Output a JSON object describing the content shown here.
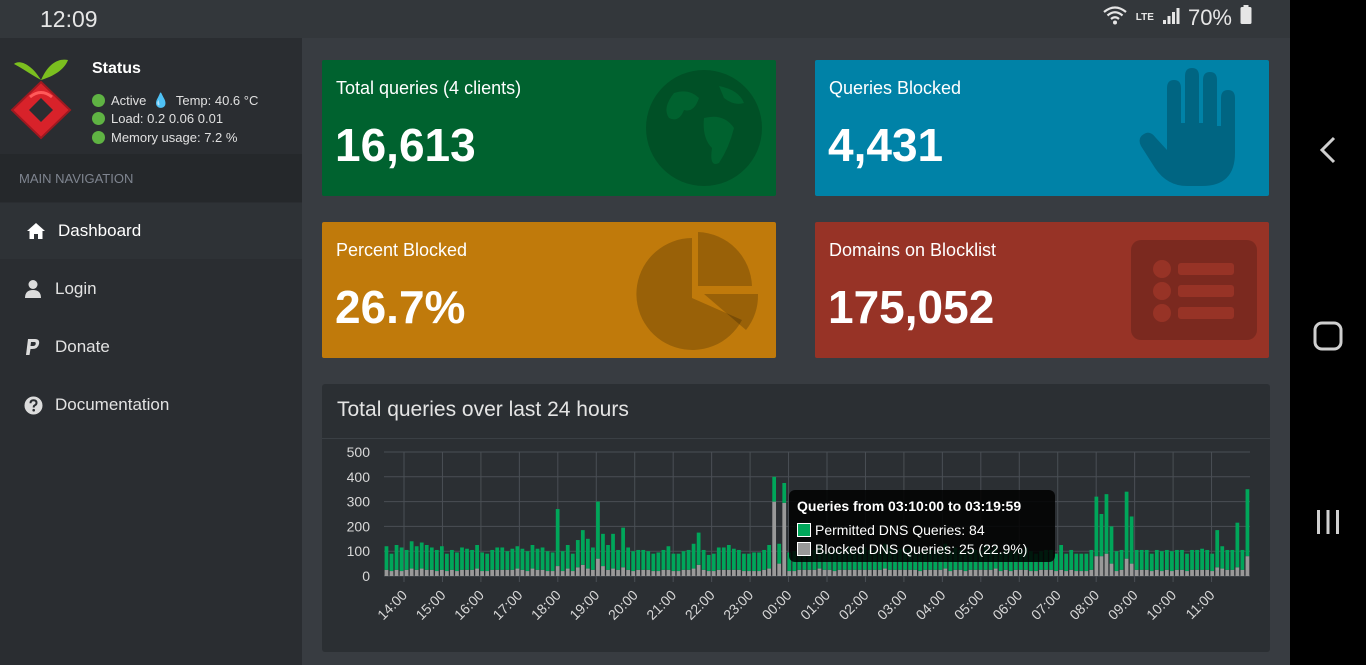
{
  "statusbar": {
    "time": "12:09",
    "network": "LTE",
    "battery": "70%"
  },
  "sidebar": {
    "status_title": "Status",
    "active_label": "Active",
    "temp_label": "Temp: 40.6 °C",
    "load_label": "Load:  0.2  0.06  0.01",
    "memory_label": "Memory usage:  7.2 %",
    "nav_header": "MAIN NAVIGATION",
    "items": [
      {
        "label": "Dashboard",
        "icon": "home-icon",
        "active": true
      },
      {
        "label": "Login",
        "icon": "user-icon",
        "active": false
      },
      {
        "label": "Donate",
        "icon": "paypal-icon",
        "active": false
      },
      {
        "label": "Documentation",
        "icon": "question-circle-icon",
        "active": false
      }
    ]
  },
  "tiles": [
    {
      "label": "Total queries (4 clients)",
      "value": "16,613",
      "color": "#00622f",
      "icon": "globe-icon"
    },
    {
      "label": "Queries Blocked",
      "value": "4,431",
      "color": "#0082a7",
      "icon": "hand-icon"
    },
    {
      "label": "Percent Blocked",
      "value": "26.7%",
      "color": "#c07a0b",
      "icon": "pie-chart-icon"
    },
    {
      "label": "Domains on Blocklist",
      "value": "175,052",
      "color": "#973326",
      "icon": "list-icon"
    }
  ],
  "chart": {
    "title": "Total queries over last 24 hours",
    "tooltip": {
      "title": "Queries from 03:10:00 to 03:19:59",
      "permitted": "Permitted DNS Queries: 84",
      "blocked": "Blocked DNS Queries: 25 (22.9%)"
    }
  },
  "chart_data": {
    "type": "bar",
    "stacked": true,
    "title": "Total queries over last 24 hours",
    "ylim": [
      0,
      500
    ],
    "yticks": [
      0,
      100,
      200,
      300,
      400,
      500
    ],
    "x_tick_labels": [
      "14:00",
      "15:00",
      "16:00",
      "17:00",
      "18:00",
      "19:00",
      "20:00",
      "21:00",
      "22:00",
      "23:00",
      "00:00",
      "01:00",
      "02:00",
      "03:00",
      "04:00",
      "05:00",
      "06:00",
      "07:00",
      "08:00",
      "09:00",
      "10:00",
      "11:00"
    ],
    "colors": {
      "permitted": "#00a65a",
      "blocked": "#999999"
    },
    "series": [
      {
        "name": "Permitted DNS Queries",
        "values": [
          95,
          70,
          100,
          95,
          80,
          110,
          95,
          105,
          100,
          90,
          85,
          95,
          70,
          80,
          75,
          90,
          85,
          80,
          95,
          75,
          70,
          80,
          90,
          90,
          75,
          85,
          90,
          85,
          80,
          95,
          85,
          90,
          80,
          75,
          230,
          80,
          95,
          70,
          110,
          140,
          120,
          90,
          230,
          130,
          100,
          140,
          80,
          160,
          90,
          80,
          80,
          80,
          75,
          70,
          75,
          80,
          95,
          70,
          70,
          75,
          80,
          100,
          130,
          80,
          65,
          70,
          90,
          90,
          100,
          85,
          80,
          70,
          70,
          75,
          75,
          80,
          95,
          100,
          80,
          80,
          75,
          80,
          70,
          70,
          80,
          80,
          90,
          75,
          75,
          85,
          80,
          80,
          95,
          80,
          80,
          90,
          80,
          80,
          75,
          100,
          90,
          80,
          85,
          84,
          85,
          80,
          75,
          80,
          80,
          80,
          80,
          100,
          80,
          90,
          80,
          80,
          80,
          80,
          75,
          100,
          80,
          90,
          75,
          80,
          80,
          80,
          80,
          90,
          80,
          70,
          75,
          80,
          80,
          70,
          100,
          70,
          80,
          70,
          70,
          70,
          80,
          240,
          170,
          240,
          150,
          80,
          80,
          270,
          190,
          80,
          80,
          80,
          70,
          80,
          80,
          80,
          80,
          80,
          80,
          70,
          80,
          80,
          85,
          80,
          70,
          150,
          90,
          80,
          80,
          180,
          80,
          270
        ]
      },
      {
        "name": "Blocked DNS Queries",
        "values": [
          25,
          20,
          25,
          20,
          25,
          30,
          25,
          30,
          25,
          25,
          20,
          25,
          20,
          25,
          20,
          25,
          25,
          25,
          30,
          20,
          20,
          25,
          25,
          25,
          25,
          25,
          30,
          25,
          20,
          30,
          25,
          25,
          20,
          20,
          40,
          20,
          30,
          20,
          35,
          45,
          30,
          25,
          70,
          40,
          25,
          30,
          25,
          35,
          25,
          20,
          25,
          25,
          25,
          20,
          20,
          25,
          25,
          20,
          20,
          25,
          25,
          30,
          45,
          25,
          20,
          20,
          25,
          25,
          25,
          25,
          25,
          20,
          20,
          20,
          20,
          25,
          30,
          300,
          50,
          295,
          20,
          20,
          25,
          25,
          25,
          25,
          30,
          25,
          25,
          20,
          25,
          25,
          25,
          25,
          25,
          25,
          25,
          25,
          25,
          30,
          25,
          25,
          25,
          25,
          25,
          25,
          20,
          25,
          25,
          25,
          25,
          30,
          20,
          25,
          25,
          20,
          25,
          25,
          25,
          25,
          25,
          30,
          20,
          25,
          20,
          25,
          25,
          25,
          20,
          20,
          25,
          25,
          25,
          20,
          25,
          20,
          25,
          20,
          20,
          20,
          25,
          80,
          80,
          90,
          50,
          20,
          25,
          70,
          50,
          25,
          25,
          25,
          20,
          25,
          20,
          25,
          20,
          25,
          25,
          20,
          25,
          25,
          25,
          25,
          20,
          35,
          30,
          25,
          25,
          35,
          25,
          80
        ]
      }
    ]
  }
}
